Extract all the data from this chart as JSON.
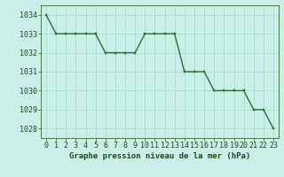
{
  "x": [
    0,
    1,
    2,
    3,
    4,
    5,
    6,
    7,
    8,
    9,
    10,
    11,
    12,
    13,
    14,
    15,
    16,
    17,
    18,
    19,
    20,
    21,
    22,
    23
  ],
  "y": [
    1034,
    1033,
    1033,
    1033,
    1033,
    1033,
    1032,
    1032,
    1032,
    1032,
    1033,
    1033,
    1033,
    1033,
    1031,
    1031,
    1031,
    1030,
    1030,
    1030,
    1030,
    1029,
    1029,
    1028
  ],
  "line_color": "#2d6e2d",
  "marker_color": "#2d6e2d",
  "bg_color": "#c8efe8",
  "grid_color": "#a8ddd4",
  "xlabel": "Graphe pression niveau de la mer (hPa)",
  "ylim_min": 1027.5,
  "ylim_max": 1034.5,
  "xlim_min": -0.5,
  "xlim_max": 23.5,
  "yticks": [
    1028,
    1029,
    1030,
    1031,
    1032,
    1033,
    1034
  ],
  "xticks": [
    0,
    1,
    2,
    3,
    4,
    5,
    6,
    7,
    8,
    9,
    10,
    11,
    12,
    13,
    14,
    15,
    16,
    17,
    18,
    19,
    20,
    21,
    22,
    23
  ],
  "tick_color": "#1a4a1a",
  "xlabel_fontsize": 6.5,
  "tick_fontsize": 6.0,
  "line_width": 1.0,
  "marker_size": 2.0
}
